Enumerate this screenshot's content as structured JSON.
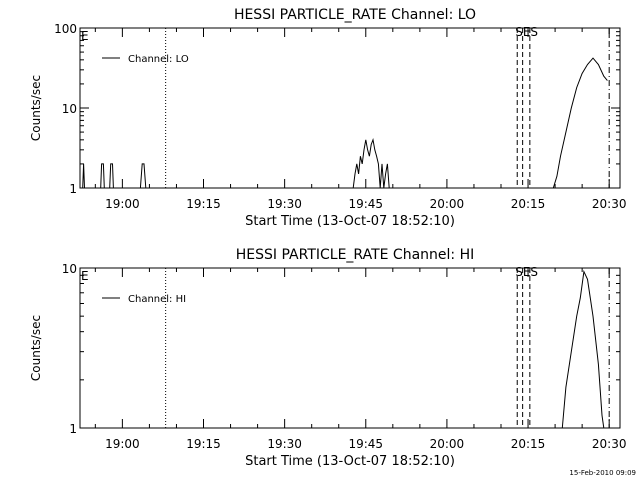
{
  "footer_date": "15-Feb-2010 09:09",
  "chart_data": [
    {
      "type": "line",
      "title": "HESSI PARTICLE_RATE Channel: LO",
      "xlabel": "Start Time (13-Oct-07 18:52:10)",
      "ylabel": "Counts/sec",
      "y_scale": "log",
      "ylim": [
        1,
        100
      ],
      "y_ticks": [
        {
          "v": 1,
          "label": "1"
        },
        {
          "v": 10,
          "label": "10"
        },
        {
          "v": 100,
          "label": "100"
        }
      ],
      "xlim": [
        "18:52:10",
        "20:32:00"
      ],
      "x_ticks": [
        "19:00",
        "19:15",
        "19:30",
        "19:45",
        "20:00",
        "20:15",
        "20:30"
      ],
      "legend": {
        "label": "Channel: LO",
        "placement": "top-left"
      },
      "corner_label": "E",
      "marker_label": "SES",
      "vlines": [
        {
          "time": "19:08:00",
          "style": "dotted"
        },
        {
          "time": "20:13:00",
          "style": "dashed"
        },
        {
          "time": "20:14:00",
          "style": "dashed"
        },
        {
          "time": "20:15:20",
          "style": "dashed"
        },
        {
          "time": "20:30:00",
          "style": "dashdot"
        }
      ],
      "series": [
        {
          "points": [
            [
              "18:52:40",
              1
            ],
            [
              "18:52:50",
              2
            ],
            [
              "18:53:00",
              1
            ],
            [
              "18:56:00",
              1
            ],
            [
              "18:56:10",
              2
            ],
            [
              "18:56:30",
              2
            ],
            [
              "18:56:40",
              1
            ],
            [
              "18:57:40",
              1
            ],
            [
              "18:57:50",
              2
            ],
            [
              "18:58:10",
              2
            ],
            [
              "18:58:20",
              1
            ],
            [
              "19:03:20",
              1
            ],
            [
              "19:03:40",
              2
            ],
            [
              "19:04:00",
              2
            ],
            [
              "19:04:20",
              1
            ],
            [
              "19:42:40",
              1
            ],
            [
              "19:43:00",
              1.5
            ],
            [
              "19:43:20",
              2
            ],
            [
              "19:43:40",
              1.5
            ],
            [
              "19:44:00",
              2.5
            ],
            [
              "19:44:20",
              2
            ],
            [
              "19:44:40",
              3
            ],
            [
              "19:45:00",
              4
            ],
            [
              "19:45:20",
              3
            ],
            [
              "19:45:40",
              2.5
            ],
            [
              "19:46:00",
              3.5
            ],
            [
              "19:46:20",
              4
            ],
            [
              "19:46:40",
              3
            ],
            [
              "19:47:00",
              2.5
            ],
            [
              "19:47:20",
              2
            ],
            [
              "19:47:40",
              1
            ],
            [
              "19:48:00",
              2
            ],
            [
              "19:48:20",
              1
            ],
            [
              "19:48:40",
              1.5
            ],
            [
              "19:49:00",
              2
            ],
            [
              "19:49:20",
              1
            ],
            [
              "20:19:40",
              1
            ],
            [
              "20:20:20",
              1.4
            ],
            [
              "20:21:00",
              2.5
            ],
            [
              "20:22:00",
              5
            ],
            [
              "20:23:00",
              10
            ],
            [
              "20:24:00",
              18
            ],
            [
              "20:25:00",
              27
            ],
            [
              "20:26:00",
              35
            ],
            [
              "20:27:00",
              42
            ],
            [
              "20:28:00",
              35
            ],
            [
              "20:29:00",
              25
            ],
            [
              "20:29:40",
              22
            ]
          ]
        }
      ]
    },
    {
      "type": "line",
      "title": "HESSI PARTICLE_RATE Channel: HI",
      "xlabel": "Start Time (13-Oct-07 18:52:10)",
      "ylabel": "Counts/sec",
      "y_scale": "log",
      "ylim": [
        1,
        10
      ],
      "y_ticks": [
        {
          "v": 1,
          "label": "1"
        },
        {
          "v": 10,
          "label": "10"
        }
      ],
      "xlim": [
        "18:52:10",
        "20:32:00"
      ],
      "x_ticks": [
        "19:00",
        "19:15",
        "19:30",
        "19:45",
        "20:00",
        "20:15",
        "20:30"
      ],
      "legend": {
        "label": "Channel: HI",
        "placement": "top-left"
      },
      "corner_label": "E",
      "marker_label": "SES",
      "vlines": [
        {
          "time": "19:08:00",
          "style": "dotted"
        },
        {
          "time": "20:13:00",
          "style": "dashed"
        },
        {
          "time": "20:14:00",
          "style": "dashed"
        },
        {
          "time": "20:15:20",
          "style": "dashed"
        },
        {
          "time": "20:30:00",
          "style": "dashdot"
        }
      ],
      "series": [
        {
          "points": [
            [
              "20:21:20",
              1
            ],
            [
              "20:22:00",
              1.8
            ],
            [
              "20:23:00",
              3
            ],
            [
              "20:24:00",
              5
            ],
            [
              "20:24:40",
              6.5
            ],
            [
              "20:25:20",
              9.5
            ],
            [
              "20:26:00",
              8.5
            ],
            [
              "20:27:00",
              5
            ],
            [
              "20:28:00",
              2.5
            ],
            [
              "20:28:40",
              1.2
            ],
            [
              "20:29:00",
              1
            ]
          ]
        }
      ]
    }
  ]
}
